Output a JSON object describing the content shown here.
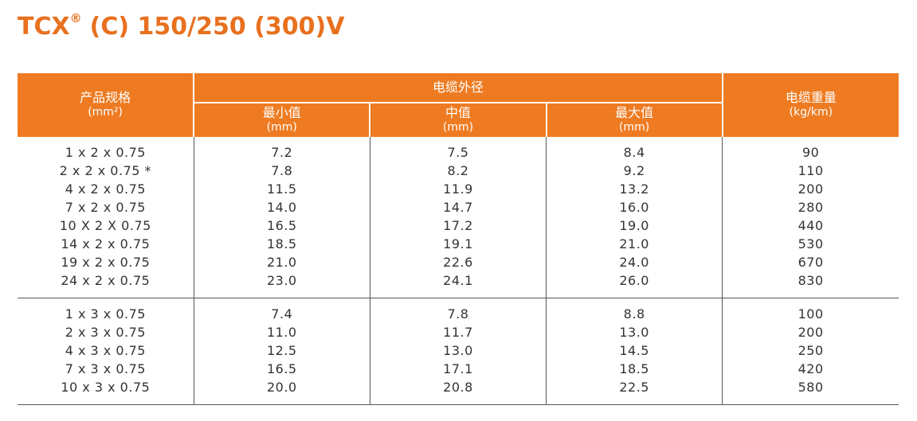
{
  "header": {
    "title": "TCX",
    "title_mark": "®",
    "title_rest": "(C) 150/250 (300)V"
  },
  "table": {
    "columns": [
      {
        "label": "产品规格",
        "unit": "(mm²)"
      },
      {
        "group": "电缆外径",
        "subcolumns": [
          {
            "label": "最小值",
            "unit": "(mm)"
          },
          {
            "label": "中值",
            "unit": "(mm)"
          },
          {
            "label": "最大值",
            "unit": "(mm)"
          }
        ]
      },
      {
        "label": "电缆重量",
        "unit": "(kg/km)"
      }
    ],
    "groups": [
      [
        [
          "1 x 2 x 0.75",
          "7.2",
          "7.5",
          "8.4",
          "90"
        ],
        [
          "2 x 2 x 0.75 *",
          "7.8",
          "8.2",
          "9.2",
          "110"
        ],
        [
          "4 x 2 x 0.75",
          "11.5",
          "11.9",
          "13.2",
          "200"
        ],
        [
          "7 x 2 x 0.75",
          "14.0",
          "14.7",
          "16.0",
          "280"
        ],
        [
          "10 X 2 X 0.75",
          "16.5",
          "17.2",
          "19.0",
          "440"
        ],
        [
          "14 x 2 x 0.75",
          "18.5",
          "19.1",
          "21.0",
          "530"
        ],
        [
          "19 x 2 x 0.75",
          "21.0",
          "22.6",
          "24.0",
          "670"
        ],
        [
          "24 x 2 x 0.75",
          "23.0",
          "24.1",
          "26.0",
          "830"
        ]
      ],
      [
        [
          "1 x 3 x 0.75",
          "7.4",
          "7.8",
          "8.8",
          "100"
        ],
        [
          "2 x 3 x 0.75",
          "11.0",
          "11.7",
          "13.0",
          "200"
        ],
        [
          "4 x 3 x 0.75",
          "12.5",
          "13.0",
          "14.5",
          "250"
        ],
        [
          "7 x 3 x 0.75",
          "16.5",
          "17.1",
          "18.5",
          "420"
        ],
        [
          "10 x 3 x 0.75",
          "20.0",
          "20.8",
          "22.5",
          "580"
        ]
      ]
    ]
  }
}
